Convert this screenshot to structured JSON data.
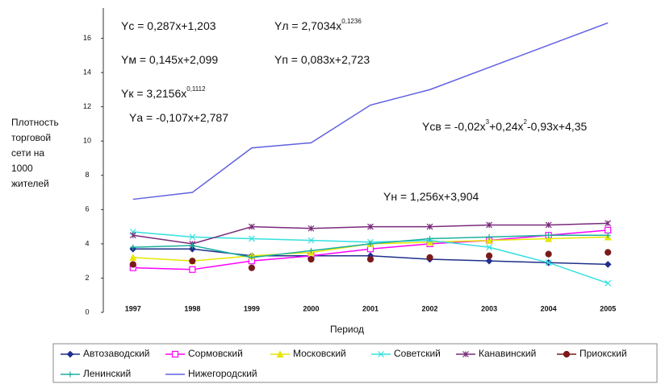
{
  "chart_data": {
    "type": "line",
    "ylabel": [
      "Плотность",
      "торговой",
      "сети на",
      "1000",
      "жителей"
    ],
    "xlabel": "Период",
    "categories": [
      "1997",
      "1998",
      "1999",
      "2000",
      "2001",
      "2002",
      "2003",
      "2004",
      "2005"
    ],
    "ylim": [
      0,
      18
    ],
    "yticks": [
      0,
      2,
      4,
      6,
      8,
      10,
      12,
      14,
      16
    ],
    "series": [
      {
        "name": "Автозаводский",
        "color": "#1f2f8a",
        "marker": "diamond",
        "line": true,
        "values": [
          3.7,
          3.7,
          3.3,
          3.3,
          3.3,
          3.1,
          3.0,
          2.9,
          2.8
        ]
      },
      {
        "name": "Сормовский",
        "color": "#ff00ff",
        "marker": "square",
        "line": true,
        "values": [
          2.6,
          2.5,
          3.0,
          3.3,
          3.7,
          4.0,
          4.2,
          4.5,
          4.8
        ]
      },
      {
        "name": "Московский",
        "color": "#e6e600",
        "marker": "triangle",
        "line": true,
        "values": [
          3.2,
          3.0,
          3.3,
          3.5,
          4.0,
          4.1,
          4.2,
          4.3,
          4.4
        ]
      },
      {
        "name": "Советский",
        "color": "#33e0e0",
        "marker": "x",
        "line": true,
        "values": [
          4.7,
          4.4,
          4.3,
          4.2,
          4.1,
          4.2,
          3.8,
          2.9,
          1.7
        ]
      },
      {
        "name": "Канавинский",
        "color": "#7a2a7a",
        "marker": "star",
        "line": true,
        "values": [
          4.5,
          4.0,
          5.0,
          4.9,
          5.0,
          5.0,
          5.1,
          5.1,
          5.2
        ]
      },
      {
        "name": "Приокский",
        "color": "#7a1a1a",
        "marker": "circle",
        "line": false,
        "values": [
          2.8,
          3.0,
          2.6,
          3.1,
          3.1,
          3.2,
          3.3,
          3.4,
          3.5
        ]
      },
      {
        "name": "Ленинский",
        "color": "#1ab0a0",
        "marker": "plus",
        "line": true,
        "values": [
          3.8,
          3.9,
          3.2,
          3.6,
          4.0,
          4.3,
          4.4,
          4.5,
          4.5
        ]
      },
      {
        "name": "Нижегородский",
        "color": "#6060e0",
        "marker": "none",
        "line": true,
        "values": [
          6.6,
          7.0,
          9.6,
          9.9,
          12.1,
          13.0,
          14.3,
          15.6,
          16.9
        ]
      }
    ],
    "annotations": [
      [
        {
          "text": "Yс = 0,287x+1,203"
        }
      ],
      [
        {
          "text": "Yл = 2,7034x"
        },
        {
          "sup": "0,1236"
        }
      ],
      [
        {
          "text": "Yм = 0,145x+2,099"
        }
      ],
      [
        {
          "text": "Yп = 0,083x+2,723"
        }
      ],
      [
        {
          "text": "Yк = 3,2156x"
        },
        {
          "sup": "0,1112"
        }
      ],
      [
        {
          "text": "Yа = -0,107x+2,787"
        }
      ],
      [
        {
          "text": "Yсв = -0,02x"
        },
        {
          "sup": "3"
        },
        {
          "text": "+0,24x"
        },
        {
          "sup": "2"
        },
        {
          "text": "-0,93x+4,35"
        }
      ],
      [
        {
          "text": "Yн = 1,256x+3,904"
        }
      ]
    ]
  }
}
